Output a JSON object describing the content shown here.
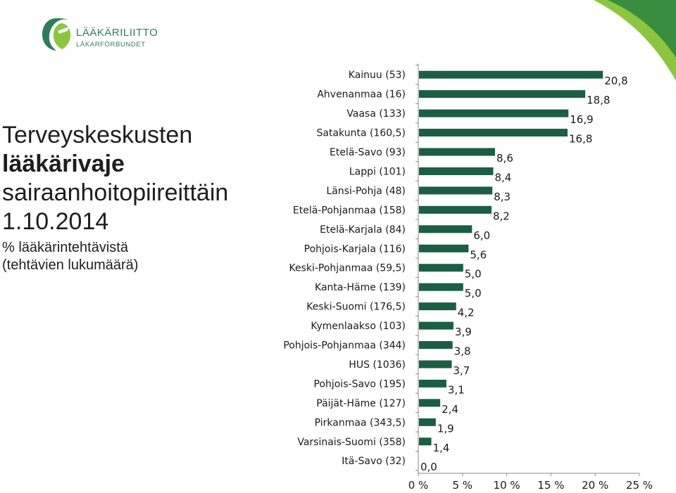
{
  "logo": {
    "name": "LÄÄKÄRILIITTO",
    "subname": "LÄKARFÖRBUNDET"
  },
  "title": {
    "line1": "Terveyskeskusten",
    "line2": "lääkärivaje",
    "line3": "sairaanhoitopiireittäin",
    "line4": "1.10.2014",
    "subtitle1": "% lääkärintehtävistä",
    "subtitle2": "(tehtävien lukumäärä)"
  },
  "colors": {
    "bar": "#1b5e45",
    "brand_green": "#2d7d5a",
    "corner_light": "#8cc63f",
    "corner_dark": "#3a8c3e"
  },
  "chart_data": {
    "type": "bar",
    "orientation": "horizontal",
    "categories": [
      "Kainuu (53)",
      "Ahvenanmaa (16)",
      "Vaasa (133)",
      "Satakunta (160,5)",
      "Etelä-Savo (93)",
      "Lappi (101)",
      "Länsi-Pohja (48)",
      "Etelä-Pohjanmaa (158)",
      "Etelä-Karjala (84)",
      "Pohjois-Karjala (116)",
      "Keski-Pohjanmaa (59,5)",
      "Kanta-Häme (139)",
      "Keski-Suomi (176,5)",
      "Kymenlaakso (103)",
      "Pohjois-Pohjanmaa (344)",
      "HUS (1036)",
      "Pohjois-Savo (195)",
      "Päijät-Häme (127)",
      "Pirkanmaa (343,5)",
      "Varsinais-Suomi (358)",
      "Itä-Savo (32)"
    ],
    "values": [
      20.8,
      18.8,
      16.9,
      16.8,
      8.6,
      8.4,
      8.3,
      8.2,
      6.0,
      5.6,
      5.0,
      5.0,
      4.2,
      3.9,
      3.8,
      3.7,
      3.1,
      2.4,
      1.9,
      1.4,
      0.0
    ],
    "value_labels": [
      "20,8",
      "18,8",
      "16,9",
      "16,8",
      "8,6",
      "8,4",
      "8,3",
      "8,2",
      "6,0",
      "5,6",
      "5,0",
      "5,0",
      "4,2",
      "3,9",
      "3,8",
      "3,7",
      "3,1",
      "2,4",
      "1,9",
      "1,4",
      "0,0"
    ],
    "x_ticks": [
      0,
      5,
      10,
      15,
      20,
      25
    ],
    "x_tick_labels": [
      "0 %",
      "5 %",
      "10 %",
      "15 %",
      "20 %",
      "25 %"
    ],
    "xlim": [
      0,
      25
    ],
    "grid": false,
    "legend": "none"
  }
}
